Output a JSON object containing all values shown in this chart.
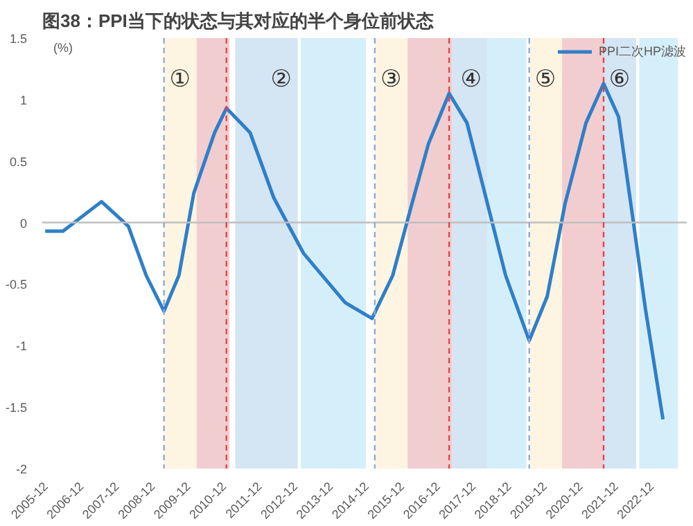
{
  "chart_data": {
    "type": "line",
    "title": "图38：PPI当下的状态与其对应的半个身位前状态",
    "ylabel": "(%)",
    "x": [
      "2005-12",
      "2006-06",
      "2007-07",
      "2008-04",
      "2008-10",
      "2009-04",
      "2009-09",
      "2010-02",
      "2010-09",
      "2011-01",
      "2011-09",
      "2012-05",
      "2013-03",
      "2014-05",
      "2015-02",
      "2015-09",
      "2016-03",
      "2016-09",
      "2017-04",
      "2017-10",
      "2018-04",
      "2018-11",
      "2019-07",
      "2020-01",
      "2020-07",
      "2021-02",
      "2021-08",
      "2022-01",
      "2022-06",
      "2022-10",
      "2023-04"
    ],
    "series": [
      {
        "name": "PPI二次HP滤波",
        "color": "#2f7fc8",
        "values": [
          -0.07,
          -0.07,
          0.17,
          -0.03,
          -0.43,
          -0.72,
          -0.43,
          0.24,
          0.73,
          0.93,
          0.73,
          0.2,
          -0.25,
          -0.65,
          -0.78,
          -0.43,
          0.11,
          0.64,
          1.05,
          0.81,
          0.24,
          -0.43,
          -0.96,
          -0.6,
          0.15,
          0.81,
          1.13,
          0.86,
          0.01,
          -0.69,
          -1.6
        ]
      }
    ],
    "xlim": [
      "2005-11",
      "2023-12"
    ],
    "xticks": [
      "2005-12",
      "2006-12",
      "2007-12",
      "2008-12",
      "2009-12",
      "2010-12",
      "2011-12",
      "2012-12",
      "2013-12",
      "2014-12",
      "2015-12",
      "2016-12",
      "2017-12",
      "2018-12",
      "2019-12",
      "2020-12",
      "2021-12",
      "2022-12"
    ],
    "ylim": [
      -2,
      1.5
    ],
    "yticks": [
      -2,
      -1.5,
      -1,
      -0.5,
      0,
      0.5,
      1,
      1.5
    ],
    "bands": [
      {
        "axis": "x",
        "from": "2009-04",
        "to": "2010-03",
        "color": "#fdf5e1",
        "label": "①"
      },
      {
        "axis": "x",
        "from": "2010-03",
        "to": "2011-02",
        "color": "#f2cdd0"
      },
      {
        "axis": "x",
        "from": "2011-04",
        "to": "2013-01",
        "color": "#d4e5f4",
        "label": "②"
      },
      {
        "axis": "x",
        "from": "2013-02",
        "to": "2014-12",
        "color": "#d5effa"
      },
      {
        "axis": "x",
        "from": "2015-03",
        "to": "2016-02",
        "color": "#fdf5e1",
        "label": "③"
      },
      {
        "axis": "x",
        "from": "2016-02",
        "to": "2017-05",
        "color": "#f2cdd0"
      },
      {
        "axis": "x",
        "from": "2017-05",
        "to": "2018-05",
        "color": "#d4e5f4",
        "label": "④"
      },
      {
        "axis": "x",
        "from": "2018-05",
        "to": "2019-06",
        "color": "#d5effa"
      },
      {
        "axis": "x",
        "from": "2019-07",
        "to": "2020-06",
        "color": "#fdf5e1",
        "label": "⑤"
      },
      {
        "axis": "x",
        "from": "2020-06",
        "to": "2021-08",
        "color": "#f2cdd0"
      },
      {
        "axis": "x",
        "from": "2021-08",
        "to": "2022-07",
        "color": "#d4e5f4",
        "label": "⑥"
      },
      {
        "axis": "x",
        "from": "2022-08",
        "to": "2023-09",
        "color": "#d5effa"
      }
    ],
    "ref_lines": [
      {
        "axis": "y",
        "value": 0,
        "color": "#bfbfbf",
        "line_style": "solid"
      },
      {
        "axis": "x",
        "value": "2009-04",
        "color": "#8eaadc",
        "line_style": "dashed"
      },
      {
        "axis": "x",
        "value": "2011-01",
        "color": "#e04848",
        "line_style": "dashed"
      },
      {
        "axis": "x",
        "value": "2015-03",
        "color": "#8eaadc",
        "line_style": "dashed"
      },
      {
        "axis": "x",
        "value": "2017-04",
        "color": "#e04848",
        "line_style": "dashed"
      },
      {
        "axis": "x",
        "value": "2019-07",
        "color": "#8eaadc",
        "line_style": "dashed"
      },
      {
        "axis": "x",
        "value": "2021-08",
        "color": "#e04848",
        "line_style": "dashed"
      }
    ],
    "legend": "top right",
    "grid": false,
    "marker": "none",
    "line_style": "solid"
  }
}
